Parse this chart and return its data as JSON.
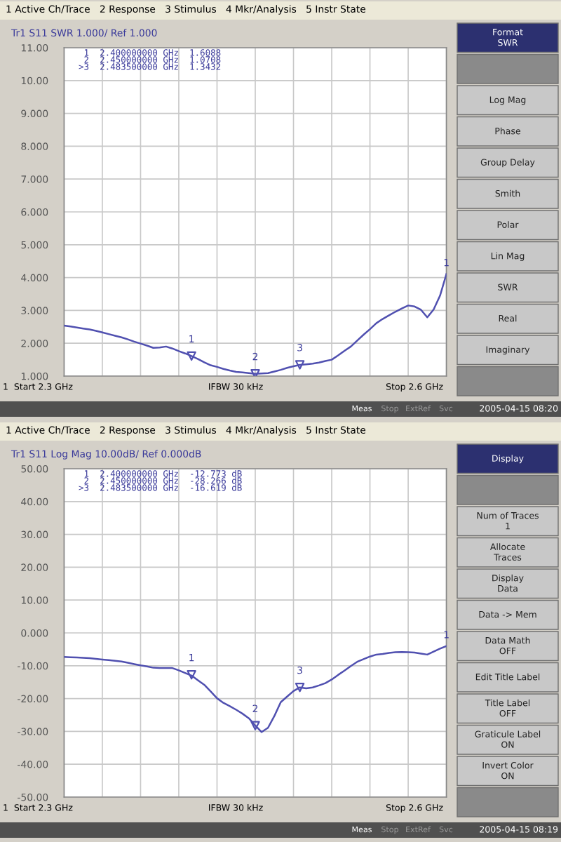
{
  "chart_data": [
    {
      "type": "line",
      "title": "Tr1 S11 SWR 1.000/ Ref 1.000",
      "subtitle": "1 Active Ch/Trace   2 Response   3 Stimulus   4 Mkr/Analysis   5 Instr State",
      "categories": [
        null,
        null,
        null,
        null,
        null,
        null,
        null,
        null,
        null,
        null,
        null,
        null,
        null,
        null,
        null,
        null,
        null,
        null,
        null,
        null,
        null,
        null,
        null,
        null,
        null,
        null,
        null,
        null,
        null,
        null,
        null,
        null,
        null,
        null,
        null,
        null,
        null,
        null,
        null,
        null,
        null,
        null,
        null,
        null,
        null,
        null,
        null,
        null,
        null,
        null,
        null,
        null,
        null,
        null,
        null,
        null,
        null,
        null,
        null,
        null,
        null
      ],
      "ylim": [
        1,
        11
      ],
      "yticks": [
        {
          "value": 1,
          "label": "1.000"
        },
        {
          "value": 2,
          "label": "2.000"
        },
        {
          "value": 3,
          "label": "3.000"
        },
        {
          "value": 4,
          "label": "4.000"
        },
        {
          "value": 5,
          "label": "5.000"
        },
        {
          "value": 6,
          "label": "6.000"
        },
        {
          "value": 7,
          "label": "7.000"
        },
        {
          "value": 8,
          "label": "8.000"
        },
        {
          "value": 9,
          "label": "9.000"
        },
        {
          "value": 10,
          "label": "10.00"
        },
        {
          "value": 11,
          "label": "11.00"
        }
      ],
      "grid": true,
      "tick_labels": "y",
      "series": [
        {
          "color": "#5050b0",
          "values": [
            2.54,
            2.51,
            2.48,
            2.45,
            2.42,
            2.38,
            2.33,
            2.28,
            2.23,
            2.18,
            2.12,
            2.05,
            1.99,
            1.93,
            1.86,
            1.87,
            1.9,
            1.84,
            1.76,
            1.69,
            1.61,
            1.52,
            1.42,
            1.33,
            1.28,
            1.22,
            1.17,
            1.13,
            1.11,
            1.09,
            1.07,
            1.08,
            1.09,
            1.14,
            1.19,
            1.25,
            1.3,
            1.34,
            1.36,
            1.38,
            1.41,
            1.46,
            1.5,
            1.63,
            1.77,
            1.9,
            2.08,
            2.26,
            2.43,
            2.61,
            2.74,
            2.85,
            2.96,
            3.06,
            3.15,
            3.12,
            3.02,
            2.79,
            3.03,
            3.45,
            4.11
          ]
        },
        {
          "type": "scatter",
          "marker": "triangle",
          "color": "#5050b0",
          "values": [
            null,
            null,
            null,
            null,
            null,
            null,
            null,
            null,
            null,
            null,
            null,
            null,
            null,
            null,
            null,
            null,
            null,
            null,
            null,
            null,
            1.6088,
            null,
            null,
            null,
            null,
            null,
            null,
            null,
            null,
            null,
            1.0708,
            null,
            null,
            null,
            null,
            null,
            null,
            1.3432,
            null,
            null,
            null,
            null,
            null,
            null,
            null,
            null,
            null,
            null,
            null,
            null,
            null,
            null,
            null,
            null,
            null,
            null,
            null,
            null,
            null,
            null,
            null
          ]
        }
      ],
      "annotations": [
        "1",
        "1",
        "2",
        "3",
        " 1  2.400000000 GHz  1.6088",
        " 2  2.450000000 GHz  1.0708",
        ">3  2.483500000 GHz  1.3432",
        "1  Start 2.3 GHz",
        "IFBW 30 kHz",
        "Stop 2.6 GHz",
        "Meas",
        "Stop",
        "ExtRef",
        "Svc",
        "2005-04-15 08:20",
        "Format\nSWR",
        "Log Mag",
        "Phase",
        "Group Delay",
        "Smith",
        "Polar",
        "Lin Mag",
        "SWR",
        "Real",
        "Imaginary"
      ]
    },
    {
      "type": "line",
      "title": "Tr1 S11 Log Mag 10.00dB/ Ref 0.000dB",
      "subtitle": "1 Active Ch/Trace   2 Response   3 Stimulus   4 Mkr/Analysis   5 Instr State",
      "categories": [
        null,
        null,
        null,
        null,
        null,
        null,
        null,
        null,
        null,
        null,
        null,
        null,
        null,
        null,
        null,
        null,
        null,
        null,
        null,
        null,
        null,
        null,
        null,
        null,
        null,
        null,
        null,
        null,
        null,
        null,
        null,
        null,
        null,
        null,
        null,
        null,
        null,
        null,
        null,
        null,
        null,
        null,
        null,
        null,
        null,
        null,
        null,
        null,
        null,
        null,
        null,
        null,
        null,
        null,
        null,
        null,
        null,
        null,
        null,
        null,
        null
      ],
      "ylim": [
        -50,
        50
      ],
      "yticks": [
        {
          "value": -50,
          "label": "-50.00"
        },
        {
          "value": -40,
          "label": "-40.00"
        },
        {
          "value": -30,
          "label": "-30.00"
        },
        {
          "value": -20,
          "label": "-20.00"
        },
        {
          "value": -10,
          "label": "-10.00"
        },
        {
          "value": 0,
          "label": "0.000"
        },
        {
          "value": 10,
          "label": "10.00"
        },
        {
          "value": 20,
          "label": "20.00"
        },
        {
          "value": 30,
          "label": "30.00"
        },
        {
          "value": 40,
          "label": "40.00"
        },
        {
          "value": 50,
          "label": "50.00"
        }
      ],
      "grid": true,
      "tick_labels": "y",
      "series": [
        {
          "color": "#5050b0",
          "values": [
            -7.3,
            -7.4,
            -7.5,
            -7.6,
            -7.7,
            -7.9,
            -8.1,
            -8.3,
            -8.5,
            -8.7,
            -9.1,
            -9.5,
            -9.9,
            -10.2,
            -10.6,
            -10.7,
            -10.7,
            -10.7,
            -11.4,
            -12.2,
            -13.0,
            -14.4,
            -15.8,
            -17.8,
            -19.9,
            -21.3,
            -22.3,
            -23.4,
            -24.6,
            -26.0,
            -28.2,
            -30.2,
            -28.9,
            -25.3,
            -21.1,
            -19.4,
            -17.7,
            -16.6,
            -16.9,
            -16.6,
            -16.0,
            -15.3,
            -14.2,
            -12.8,
            -11.5,
            -10.1,
            -8.8,
            -8.0,
            -7.2,
            -6.6,
            -6.4,
            -6.1,
            -5.9,
            -5.8,
            -5.9,
            -6.0,
            -6.3,
            -6.6,
            -5.7,
            -4.8,
            -4.0
          ]
        },
        {
          "type": "scatter",
          "marker": "triangle",
          "color": "#5050b0",
          "values": [
            null,
            null,
            null,
            null,
            null,
            null,
            null,
            null,
            null,
            null,
            null,
            null,
            null,
            null,
            null,
            null,
            null,
            null,
            null,
            null,
            -12.773,
            null,
            null,
            null,
            null,
            null,
            null,
            null,
            null,
            null,
            -28.266,
            null,
            null,
            null,
            null,
            null,
            null,
            -16.619,
            null,
            null,
            null,
            null,
            null,
            null,
            null,
            null,
            null,
            null,
            null,
            null,
            null,
            null,
            null,
            null,
            null,
            null,
            null,
            null,
            null,
            null,
            null
          ]
        }
      ],
      "annotations": [
        "1",
        "1",
        "2",
        "3",
        " 1  2.400000000 GHz  -12.773 dB",
        " 2  2.450000000 GHz  -28.266 dB",
        ">3  2.483500000 GHz  -16.619 dB",
        "1  Start 2.3 GHz",
        "IFBW 30 kHz",
        "Stop 2.6 GHz",
        "Meas",
        "Stop",
        "ExtRef",
        "Svc",
        "2005-04-15 08:19",
        "Display",
        "Num of Traces\n1",
        "Allocate\nTraces",
        "Display\nData",
        "Data -> Mem",
        "Data Math\nOFF",
        "Edit Title Label",
        "Title Label\nOFF",
        "Graticule Label\nON",
        "Invert Color\nON"
      ]
    }
  ]
}
